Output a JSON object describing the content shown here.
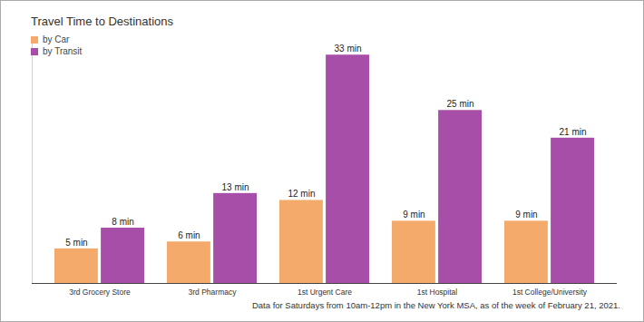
{
  "chart_data": {
    "type": "bar",
    "title": "Travel Time to Destinations",
    "caption": "Data for Saturdays from 10am-12pm in the New York MSA, as of the week of February 21, 2021.",
    "categories": [
      "3rd Grocery Store",
      "3rd Pharmacy",
      "1st Urgent Care",
      "1st Hospital",
      "1st College/University"
    ],
    "series": [
      {
        "name": "by Car",
        "color": "#f4aa6b",
        "values": [
          5,
          6,
          12,
          9,
          9
        ],
        "value_labels": [
          "5 min",
          "6 min",
          "12 min",
          "9 min",
          "9 min"
        ]
      },
      {
        "name": "by Transit",
        "color": "#a74ea8",
        "values": [
          8,
          13,
          33,
          25,
          21
        ],
        "value_labels": [
          "8 min",
          "13 min",
          "33 min",
          "25 min",
          "21 min"
        ]
      }
    ],
    "ylim": [
      0,
      35
    ],
    "yticks": [],
    "data_labels": true,
    "tick_labels": "x",
    "legend": "top-left",
    "grid": false
  }
}
